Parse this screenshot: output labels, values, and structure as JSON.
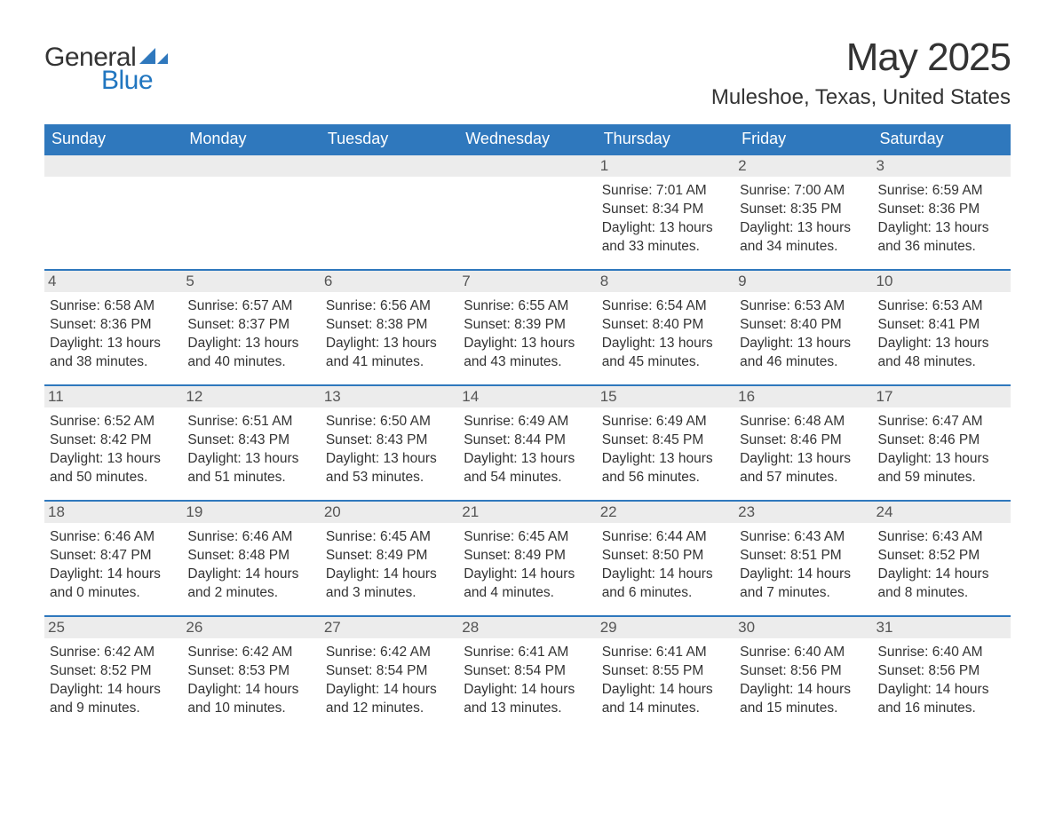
{
  "brand": {
    "word1": "General",
    "word2": "Blue",
    "word1_color": "#333333",
    "word2_color": "#2176c0",
    "sail_color": "#2f78bd"
  },
  "title": "May 2025",
  "location": "Muleshoe, Texas, United States",
  "colors": {
    "header_bg": "#2f78bd",
    "header_text": "#ffffff",
    "daynum_bg": "#ececec",
    "daynum_text": "#555555",
    "body_text": "#333333",
    "week_divider": "#2f78bd",
    "page_bg": "#ffffff"
  },
  "typography": {
    "title_fontsize": 44,
    "location_fontsize": 24,
    "dow_fontsize": 18,
    "daynum_fontsize": 17,
    "body_fontsize": 15.5,
    "logo_fontsize": 30
  },
  "days_of_week": [
    "Sunday",
    "Monday",
    "Tuesday",
    "Wednesday",
    "Thursday",
    "Friday",
    "Saturday"
  ],
  "weeks": [
    [
      {
        "empty": true
      },
      {
        "empty": true
      },
      {
        "empty": true
      },
      {
        "empty": true
      },
      {
        "num": "1",
        "sunrise": "Sunrise: 7:01 AM",
        "sunset": "Sunset: 8:34 PM",
        "daylight1": "Daylight: 13 hours",
        "daylight2": "and 33 minutes."
      },
      {
        "num": "2",
        "sunrise": "Sunrise: 7:00 AM",
        "sunset": "Sunset: 8:35 PM",
        "daylight1": "Daylight: 13 hours",
        "daylight2": "and 34 minutes."
      },
      {
        "num": "3",
        "sunrise": "Sunrise: 6:59 AM",
        "sunset": "Sunset: 8:36 PM",
        "daylight1": "Daylight: 13 hours",
        "daylight2": "and 36 minutes."
      }
    ],
    [
      {
        "num": "4",
        "sunrise": "Sunrise: 6:58 AM",
        "sunset": "Sunset: 8:36 PM",
        "daylight1": "Daylight: 13 hours",
        "daylight2": "and 38 minutes."
      },
      {
        "num": "5",
        "sunrise": "Sunrise: 6:57 AM",
        "sunset": "Sunset: 8:37 PM",
        "daylight1": "Daylight: 13 hours",
        "daylight2": "and 40 minutes."
      },
      {
        "num": "6",
        "sunrise": "Sunrise: 6:56 AM",
        "sunset": "Sunset: 8:38 PM",
        "daylight1": "Daylight: 13 hours",
        "daylight2": "and 41 minutes."
      },
      {
        "num": "7",
        "sunrise": "Sunrise: 6:55 AM",
        "sunset": "Sunset: 8:39 PM",
        "daylight1": "Daylight: 13 hours",
        "daylight2": "and 43 minutes."
      },
      {
        "num": "8",
        "sunrise": "Sunrise: 6:54 AM",
        "sunset": "Sunset: 8:40 PM",
        "daylight1": "Daylight: 13 hours",
        "daylight2": "and 45 minutes."
      },
      {
        "num": "9",
        "sunrise": "Sunrise: 6:53 AM",
        "sunset": "Sunset: 8:40 PM",
        "daylight1": "Daylight: 13 hours",
        "daylight2": "and 46 minutes."
      },
      {
        "num": "10",
        "sunrise": "Sunrise: 6:53 AM",
        "sunset": "Sunset: 8:41 PM",
        "daylight1": "Daylight: 13 hours",
        "daylight2": "and 48 minutes."
      }
    ],
    [
      {
        "num": "11",
        "sunrise": "Sunrise: 6:52 AM",
        "sunset": "Sunset: 8:42 PM",
        "daylight1": "Daylight: 13 hours",
        "daylight2": "and 50 minutes."
      },
      {
        "num": "12",
        "sunrise": "Sunrise: 6:51 AM",
        "sunset": "Sunset: 8:43 PM",
        "daylight1": "Daylight: 13 hours",
        "daylight2": "and 51 minutes."
      },
      {
        "num": "13",
        "sunrise": "Sunrise: 6:50 AM",
        "sunset": "Sunset: 8:43 PM",
        "daylight1": "Daylight: 13 hours",
        "daylight2": "and 53 minutes."
      },
      {
        "num": "14",
        "sunrise": "Sunrise: 6:49 AM",
        "sunset": "Sunset: 8:44 PM",
        "daylight1": "Daylight: 13 hours",
        "daylight2": "and 54 minutes."
      },
      {
        "num": "15",
        "sunrise": "Sunrise: 6:49 AM",
        "sunset": "Sunset: 8:45 PM",
        "daylight1": "Daylight: 13 hours",
        "daylight2": "and 56 minutes."
      },
      {
        "num": "16",
        "sunrise": "Sunrise: 6:48 AM",
        "sunset": "Sunset: 8:46 PM",
        "daylight1": "Daylight: 13 hours",
        "daylight2": "and 57 minutes."
      },
      {
        "num": "17",
        "sunrise": "Sunrise: 6:47 AM",
        "sunset": "Sunset: 8:46 PM",
        "daylight1": "Daylight: 13 hours",
        "daylight2": "and 59 minutes."
      }
    ],
    [
      {
        "num": "18",
        "sunrise": "Sunrise: 6:46 AM",
        "sunset": "Sunset: 8:47 PM",
        "daylight1": "Daylight: 14 hours",
        "daylight2": "and 0 minutes."
      },
      {
        "num": "19",
        "sunrise": "Sunrise: 6:46 AM",
        "sunset": "Sunset: 8:48 PM",
        "daylight1": "Daylight: 14 hours",
        "daylight2": "and 2 minutes."
      },
      {
        "num": "20",
        "sunrise": "Sunrise: 6:45 AM",
        "sunset": "Sunset: 8:49 PM",
        "daylight1": "Daylight: 14 hours",
        "daylight2": "and 3 minutes."
      },
      {
        "num": "21",
        "sunrise": "Sunrise: 6:45 AM",
        "sunset": "Sunset: 8:49 PM",
        "daylight1": "Daylight: 14 hours",
        "daylight2": "and 4 minutes."
      },
      {
        "num": "22",
        "sunrise": "Sunrise: 6:44 AM",
        "sunset": "Sunset: 8:50 PM",
        "daylight1": "Daylight: 14 hours",
        "daylight2": "and 6 minutes."
      },
      {
        "num": "23",
        "sunrise": "Sunrise: 6:43 AM",
        "sunset": "Sunset: 8:51 PM",
        "daylight1": "Daylight: 14 hours",
        "daylight2": "and 7 minutes."
      },
      {
        "num": "24",
        "sunrise": "Sunrise: 6:43 AM",
        "sunset": "Sunset: 8:52 PM",
        "daylight1": "Daylight: 14 hours",
        "daylight2": "and 8 minutes."
      }
    ],
    [
      {
        "num": "25",
        "sunrise": "Sunrise: 6:42 AM",
        "sunset": "Sunset: 8:52 PM",
        "daylight1": "Daylight: 14 hours",
        "daylight2": "and 9 minutes."
      },
      {
        "num": "26",
        "sunrise": "Sunrise: 6:42 AM",
        "sunset": "Sunset: 8:53 PM",
        "daylight1": "Daylight: 14 hours",
        "daylight2": "and 10 minutes."
      },
      {
        "num": "27",
        "sunrise": "Sunrise: 6:42 AM",
        "sunset": "Sunset: 8:54 PM",
        "daylight1": "Daylight: 14 hours",
        "daylight2": "and 12 minutes."
      },
      {
        "num": "28",
        "sunrise": "Sunrise: 6:41 AM",
        "sunset": "Sunset: 8:54 PM",
        "daylight1": "Daylight: 14 hours",
        "daylight2": "and 13 minutes."
      },
      {
        "num": "29",
        "sunrise": "Sunrise: 6:41 AM",
        "sunset": "Sunset: 8:55 PM",
        "daylight1": "Daylight: 14 hours",
        "daylight2": "and 14 minutes."
      },
      {
        "num": "30",
        "sunrise": "Sunrise: 6:40 AM",
        "sunset": "Sunset: 8:56 PM",
        "daylight1": "Daylight: 14 hours",
        "daylight2": "and 15 minutes."
      },
      {
        "num": "31",
        "sunrise": "Sunrise: 6:40 AM",
        "sunset": "Sunset: 8:56 PM",
        "daylight1": "Daylight: 14 hours",
        "daylight2": "and 16 minutes."
      }
    ]
  ]
}
